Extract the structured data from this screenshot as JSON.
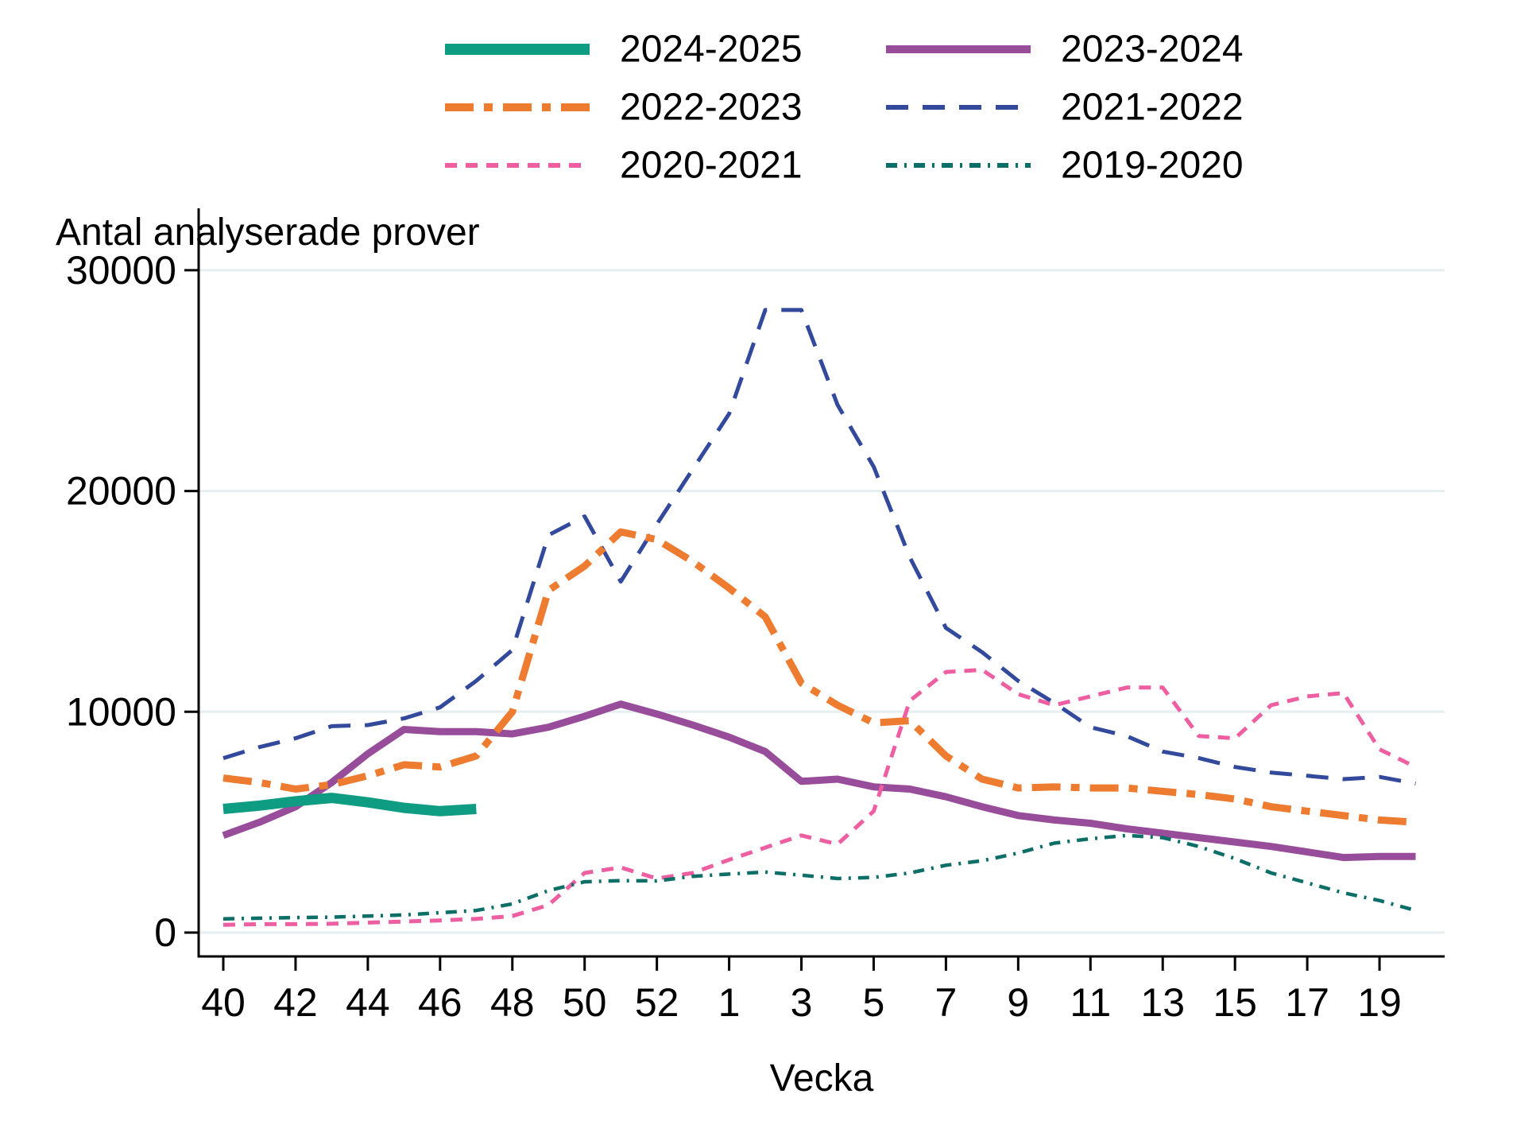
{
  "title": "Antal analyserade prover",
  "x_axis": {
    "title": "Vecka",
    "tick_labels": [
      "40",
      "42",
      "44",
      "46",
      "48",
      "50",
      "52",
      "1",
      "3",
      "5",
      "7",
      "9",
      "11",
      "13",
      "15",
      "17",
      "19"
    ]
  },
  "y_axis": {
    "tick_labels": [
      "0",
      "10000",
      "20000",
      "30000"
    ]
  },
  "legend": {
    "position": "top",
    "order_row_major": [
      "2024-2025",
      "2023-2024",
      "2022-2023",
      "2021-2022",
      "2020-2021",
      "2019-2020"
    ]
  },
  "colors": {
    "season_2024_2025": "#0e9c82",
    "season_2023_2024": "#984d9a",
    "season_2022_2023": "#ee7c30",
    "season_2021_2022": "#32499c",
    "season_2020_2021": "#ee5fa2",
    "season_2019_2020": "#0b6e67",
    "gridline": "#e7eef0",
    "axis": "#000000"
  },
  "chart_data": {
    "type": "line",
    "title": "Antal analyserade prover",
    "xlabel": "Vecka",
    "ylabel": "Antal analyserade prover",
    "ylim": [
      0,
      31000
    ],
    "y_ticks": [
      0,
      10000,
      20000,
      30000
    ],
    "grid": "horizontal gridlines at y ticks",
    "legend_position": "top-center, 2 columns",
    "x_weeks": [
      40,
      41,
      42,
      43,
      44,
      45,
      46,
      47,
      48,
      49,
      50,
      51,
      52,
      53,
      1,
      2,
      3,
      4,
      5,
      6,
      7,
      8,
      9,
      10,
      11,
      12,
      13,
      14,
      15,
      16,
      17,
      18,
      19,
      20
    ],
    "x_tick_label_indices": [
      0,
      2,
      4,
      6,
      8,
      10,
      12,
      14,
      16,
      18,
      20,
      22,
      24,
      26,
      28,
      30,
      32
    ],
    "series": [
      {
        "name": "2024-2025",
        "color": "#0e9c82",
        "line_style": "solid",
        "line_width": 13,
        "dash": "",
        "values": [
          5600,
          5750,
          5950,
          6100,
          5900,
          5650,
          5500,
          5600,
          null,
          null,
          null,
          null,
          null,
          null,
          null,
          null,
          null,
          null,
          null,
          null,
          null,
          null,
          null,
          null,
          null,
          null,
          null,
          null,
          null,
          null,
          null,
          null,
          null,
          null
        ]
      },
      {
        "name": "2023-2024",
        "color": "#984d9a",
        "line_style": "solid",
        "line_width": 9,
        "dash": "",
        "values": [
          4400,
          5000,
          5700,
          6800,
          8100,
          9200,
          9100,
          9100,
          9000,
          9300,
          9800,
          10350,
          9900,
          9400,
          8850,
          8200,
          6850,
          6950,
          6600,
          6500,
          6150,
          5700,
          5300,
          5100,
          4950,
          4700,
          4500,
          4300,
          4100,
          3900,
          3650,
          3400,
          3450,
          3450
        ]
      },
      {
        "name": "2022-2023",
        "color": "#ee7c30",
        "line_style": "dash-dot",
        "line_width": 9,
        "dash": "36 13 11 13",
        "values": [
          7000,
          6800,
          6500,
          6700,
          7100,
          7600,
          7500,
          8000,
          10000,
          15500,
          16600,
          18150,
          17800,
          16800,
          15600,
          14300,
          11300,
          10300,
          9500,
          9600,
          8000,
          6950,
          6550,
          6600,
          6550,
          6550,
          6400,
          6250,
          6050,
          5700,
          5500,
          5300,
          5100,
          5000
        ]
      },
      {
        "name": "2021-2022",
        "color": "#32499c",
        "line_style": "dashed",
        "line_width": 5,
        "dash": "28 18",
        "values": [
          7900,
          8400,
          8800,
          9350,
          9400,
          9700,
          10200,
          11400,
          12800,
          18000,
          18850,
          15900,
          18500,
          21000,
          23500,
          28200,
          28200,
          23900,
          21100,
          17000,
          13800,
          12700,
          11400,
          10400,
          9300,
          8900,
          8200,
          7900,
          7500,
          7250,
          7100,
          6950,
          7050,
          6750
        ]
      },
      {
        "name": "2020-2021",
        "color": "#ee5fa2",
        "line_style": "short-dash",
        "line_width": 5,
        "dash": "15 11",
        "values": [
          350,
          380,
          380,
          400,
          450,
          500,
          550,
          620,
          750,
          1250,
          2700,
          2950,
          2450,
          2700,
          3300,
          3850,
          4400,
          4000,
          5500,
          10500,
          11800,
          11900,
          10800,
          10300,
          10700,
          11100,
          11100,
          8900,
          8800,
          10300,
          10700,
          10850,
          8300,
          7500
        ]
      },
      {
        "name": "2019-2020",
        "color": "#0b6e67",
        "line_style": "dash-dot-small",
        "line_width": 4.5,
        "dash": "14 9 3 9",
        "values": [
          620,
          650,
          680,
          700,
          750,
          800,
          900,
          1000,
          1300,
          1900,
          2300,
          2350,
          2340,
          2550,
          2650,
          2740,
          2600,
          2450,
          2500,
          2700,
          3050,
          3250,
          3600,
          4050,
          4250,
          4400,
          4300,
          3900,
          3350,
          2700,
          2250,
          1800,
          1450,
          1000
        ]
      }
    ]
  }
}
